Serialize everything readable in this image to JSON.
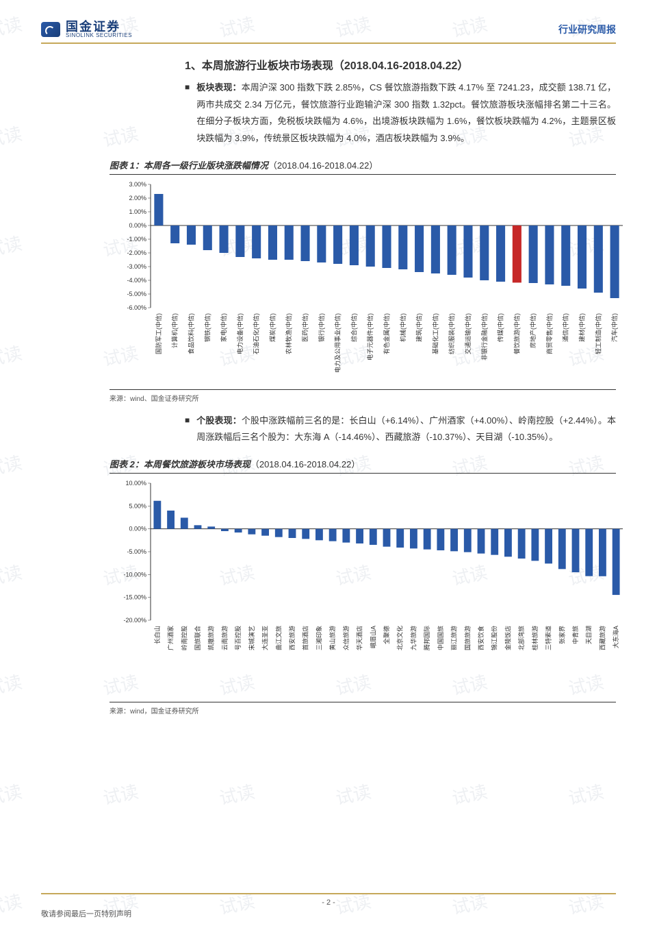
{
  "header": {
    "logo_cn": "国金证券",
    "logo_en": "SINOLINK SECURITIES",
    "doc_type": "行业研究周报"
  },
  "section1": {
    "title": "1、本周旅游行业板块市场表现（2018.04.16-2018.04.22）",
    "bullet_label": "板块表现：",
    "para": "本周沪深 300 指数下跌 2.85%，CS 餐饮旅游指数下跌 4.17% 至 7241.23，成交额 138.71 亿，两市共成交 2.34 万亿元，餐饮旅游行业跑输沪深 300 指数 1.32pct。餐饮旅游板块涨幅排名第二十三名。在细分子板块方面，免税板块跌幅为 4.6%，出境游板块跌幅为 1.6%，餐饮板块跌幅为 4.2%，主题景区板块跌幅为 3.9%，传统景区板块跌幅为 4.0%，酒店板块跌幅为 3.9%。"
  },
  "fig1": {
    "caption_bold": "图表 1：本周各一级行业版块涨跌幅情况",
    "caption_rest": "（2018.04.16-2018.04.22）",
    "source": "来源：wind、国金证券研究所",
    "type": "bar",
    "y_label_suffix": "%",
    "ylim": [
      -6,
      3
    ],
    "ytick_step": 1,
    "bar_color": "#2a5aa8",
    "highlight_color": "#c62828",
    "highlight_index": 22,
    "background": "#ffffff",
    "axis_color": "#333333",
    "label_fontsize": 9,
    "categories": [
      "国防军工(中信)",
      "计算机(中信)",
      "食品饮料(中信)",
      "钢铁(中信)",
      "家电(中信)",
      "电力设备(中信)",
      "石油石化(中信)",
      "煤炭(中信)",
      "农林牧渔(中信)",
      "医药(中信)",
      "银行(中信)",
      "电力及公用事业(中信)",
      "综合(中信)",
      "电子元器件(中信)",
      "有色金属(中信)",
      "机械(中信)",
      "建筑(中信)",
      "基础化工(中信)",
      "纺织服装(中信)",
      "交通运输(中信)",
      "非银行金融(中信)",
      "传媒(中信)",
      "餐饮旅游(中信)",
      "房地产(中信)",
      "商贸零售(中信)",
      "通信(中信)",
      "建材(中信)",
      "轻工制造(中信)",
      "汽车(中信)"
    ],
    "values": [
      2.3,
      -1.3,
      -1.4,
      -1.8,
      -2.0,
      -2.3,
      -2.4,
      -2.5,
      -2.5,
      -2.6,
      -2.7,
      -2.8,
      -2.9,
      -3.0,
      -3.1,
      -3.2,
      -3.4,
      -3.5,
      -3.6,
      -3.8,
      -4.0,
      -4.1,
      -4.17,
      -4.2,
      -4.3,
      -4.4,
      -4.6,
      -4.9,
      -5.3
    ]
  },
  "section2": {
    "bullet_label": "个股表现：",
    "para": "个股中涨跌幅前三名的是：长白山（+6.14%）、广州酒家（+4.00%）、岭南控股（+2.44%）。本周涨跌幅后三名个股为：大东海 A（-14.46%）、西藏旅游（-10.37%）、天目湖（-10.35%）。"
  },
  "fig2": {
    "caption_bold": "图表 2：本周餐饮旅游板块市场表现",
    "caption_rest": "（2018.04.16-2018.04.22）",
    "source": "来源：wind，国金证券研究所",
    "type": "bar",
    "y_label_suffix": "%",
    "ylim": [
      -20,
      10
    ],
    "ytick_step": 5,
    "bar_color": "#2a5aa8",
    "background": "#ffffff",
    "axis_color": "#333333",
    "label_fontsize": 9,
    "categories": [
      "长白山",
      "广州酒家",
      "岭南控股",
      "国旅联合",
      "凯撒旅游",
      "云南旅游",
      "号百控股",
      "宋城演艺",
      "大连圣亚",
      "曲江文旅",
      "西安旅游",
      "首旅酒店",
      "三湘印象",
      "黄山旅游",
      "众信旅游",
      "华天酒店",
      "峨眉山A",
      "全聚德",
      "北京文化",
      "九华旅游",
      "腾邦国际",
      "中国国旅",
      "丽江旅游",
      "国旅旅游",
      "西安饮食",
      "锦江股份",
      "金陵饭店",
      "北部湾旅",
      "桂林旅游",
      "三特索道",
      "张家界",
      "中青旅",
      "天目湖",
      "西藏旅游",
      "大东海A"
    ],
    "values": [
      6.14,
      4.0,
      2.44,
      0.8,
      0.5,
      -0.5,
      -0.8,
      -1.2,
      -1.5,
      -1.8,
      -2.0,
      -2.2,
      -2.5,
      -2.7,
      -3.0,
      -3.2,
      -3.5,
      -3.9,
      -4.1,
      -4.3,
      -4.5,
      -4.7,
      -4.9,
      -5.1,
      -5.4,
      -5.7,
      -6.1,
      -6.5,
      -7.0,
      -7.6,
      -8.8,
      -9.5,
      -10.35,
      -10.37,
      -14.46
    ]
  },
  "footer": {
    "page_num": "- 2 -",
    "disclaimer": "敬请参阅最后一页特别声明"
  },
  "watermark_text": "试读"
}
